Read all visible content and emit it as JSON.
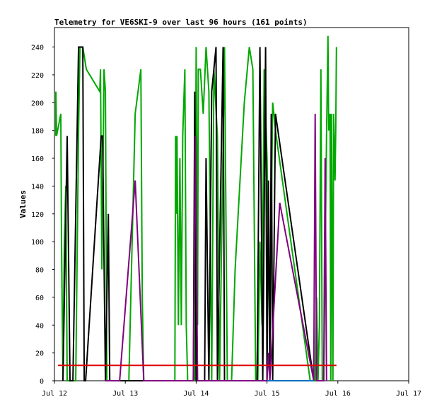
{
  "chart_data": {
    "type": "line",
    "title": "Telemetry for VE6SKI-9 over last 96 hours (161 points)",
    "xlabel": "",
    "ylabel": "Values",
    "x_ticks": [
      "Jul 12",
      "Jul 13",
      "Jul 14",
      "Jul 15",
      "Jul 16",
      "Jul 17"
    ],
    "x_range_days": [
      12,
      17
    ],
    "ylim": [
      0,
      254
    ],
    "y_ticks": [
      0,
      20,
      40,
      60,
      80,
      100,
      120,
      140,
      160,
      180,
      200,
      220,
      240
    ],
    "grid": false,
    "colors": {
      "green": "#00a800",
      "black": "#000000",
      "purple": "#800080",
      "red": "#e00000",
      "blue": "#0070c0"
    },
    "series": [
      {
        "color": "#00a800",
        "points": [
          [
            12.02,
            176
          ],
          [
            12.02,
            208
          ],
          [
            12.03,
            176
          ],
          [
            12.09,
            192
          ],
          [
            12.1,
            100
          ],
          [
            12.12,
            0
          ],
          [
            12.14,
            100
          ],
          [
            12.16,
            140
          ],
          [
            12.18,
            0
          ],
          [
            12.3,
            0
          ],
          [
            12.34,
            180
          ],
          [
            12.36,
            240
          ],
          [
            12.4,
            240
          ],
          [
            12.45,
            224
          ],
          [
            12.64,
            208
          ],
          [
            12.65,
            224
          ],
          [
            12.67,
            80
          ],
          [
            12.7,
            224
          ],
          [
            12.72,
            208
          ],
          [
            12.74,
            0
          ],
          [
            13.05,
            0
          ],
          [
            13.14,
            192
          ],
          [
            13.22,
            224
          ],
          [
            13.24,
            60
          ],
          [
            13.26,
            0
          ],
          [
            13.7,
            0
          ],
          [
            13.71,
            176
          ],
          [
            13.72,
            120
          ],
          [
            13.73,
            176
          ],
          [
            13.75,
            40
          ],
          [
            13.77,
            160
          ],
          [
            13.79,
            40
          ],
          [
            13.81,
            176
          ],
          [
            13.84,
            224
          ],
          [
            13.86,
            40
          ],
          [
            13.88,
            0
          ],
          [
            13.98,
            0
          ],
          [
            14.0,
            240
          ],
          [
            14.02,
            40
          ],
          [
            14.03,
            224
          ],
          [
            14.06,
            224
          ],
          [
            14.1,
            192
          ],
          [
            14.14,
            240
          ],
          [
            14.18,
            208
          ],
          [
            14.22,
            0
          ],
          [
            14.25,
            224
          ],
          [
            14.3,
            176
          ],
          [
            14.33,
            0
          ],
          [
            14.4,
            240
          ],
          [
            14.44,
            0
          ],
          [
            14.5,
            0
          ],
          [
            14.55,
            80
          ],
          [
            14.68,
            200
          ],
          [
            14.75,
            240
          ],
          [
            14.8,
            224
          ],
          [
            14.84,
            0
          ],
          [
            14.87,
            0
          ],
          [
            14.9,
            100
          ],
          [
            14.93,
            40
          ],
          [
            14.96,
            224
          ],
          [
            15.0,
            160
          ],
          [
            15.04,
            30
          ],
          [
            15.08,
            200
          ],
          [
            15.13,
            176
          ],
          [
            15.61,
            0
          ],
          [
            15.68,
            0
          ],
          [
            15.7,
            60
          ],
          [
            15.72,
            0
          ],
          [
            15.74,
            40
          ],
          [
            15.76,
            224
          ],
          [
            15.78,
            0
          ],
          [
            15.8,
            0
          ],
          [
            15.84,
            176
          ],
          [
            15.86,
            248
          ],
          [
            15.87,
            180
          ],
          [
            15.89,
            192
          ],
          [
            15.9,
            0
          ],
          [
            15.91,
            192
          ],
          [
            15.93,
            0
          ],
          [
            15.94,
            192
          ],
          [
            15.96,
            144
          ],
          [
            15.97,
            180
          ],
          [
            15.98,
            240
          ]
        ]
      },
      {
        "color": "#000000",
        "points": [
          [
            12.12,
            0
          ],
          [
            12.18,
            176
          ],
          [
            12.22,
            0
          ],
          [
            12.26,
            0
          ],
          [
            12.34,
            240
          ],
          [
            12.36,
            240
          ],
          [
            12.4,
            240
          ],
          [
            12.42,
            0
          ],
          [
            12.44,
            0
          ],
          [
            12.66,
            176
          ],
          [
            12.68,
            176
          ],
          [
            12.72,
            0
          ],
          [
            12.76,
            120
          ],
          [
            12.78,
            0
          ],
          [
            12.8,
            0
          ],
          [
            13.96,
            0
          ],
          [
            13.98,
            208
          ],
          [
            14.0,
            0
          ],
          [
            14.12,
            0
          ],
          [
            14.14,
            160
          ],
          [
            14.18,
            0
          ],
          [
            14.22,
            208
          ],
          [
            14.28,
            240
          ],
          [
            14.3,
            0
          ],
          [
            14.38,
            240
          ],
          [
            14.4,
            0
          ],
          [
            14.86,
            0
          ],
          [
            14.9,
            240
          ],
          [
            14.94,
            0
          ],
          [
            14.98,
            240
          ],
          [
            15.0,
            0
          ],
          [
            15.02,
            144
          ],
          [
            15.04,
            0
          ],
          [
            15.06,
            192
          ],
          [
            15.08,
            0
          ],
          [
            15.12,
            192
          ],
          [
            15.66,
            0
          ]
        ]
      },
      {
        "color": "#800080",
        "points": [
          [
            12.72,
            0
          ],
          [
            12.92,
            0
          ],
          [
            13.14,
            144
          ],
          [
            13.26,
            0
          ],
          [
            13.96,
            0
          ],
          [
            13.99,
            176
          ],
          [
            14.02,
            0
          ],
          [
            15.0,
            0
          ],
          [
            15.02,
            20
          ],
          [
            15.04,
            0
          ],
          [
            15.18,
            128
          ],
          [
            15.66,
            0
          ],
          [
            15.68,
            192
          ],
          [
            15.7,
            0
          ],
          [
            15.8,
            0
          ],
          [
            15.82,
            160
          ],
          [
            15.84,
            0
          ]
        ]
      },
      {
        "color": "#e00000",
        "points": [
          [
            12.05,
            11
          ],
          [
            15.98,
            11
          ]
        ]
      },
      {
        "color": "#0070c0",
        "points": [
          [
            15.0,
            0
          ],
          [
            15.66,
            0
          ]
        ]
      }
    ]
  }
}
